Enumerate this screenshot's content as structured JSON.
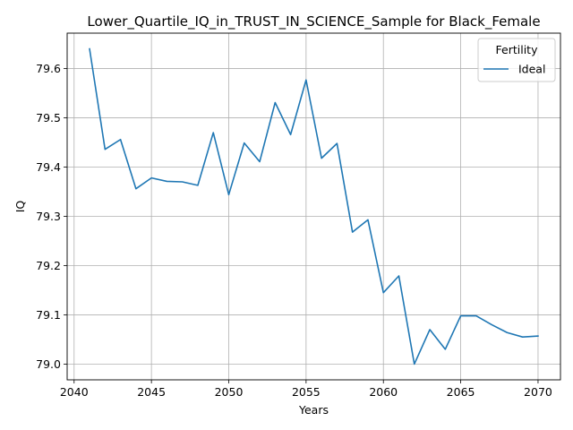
{
  "chart_data": {
    "type": "line",
    "title": "Lower_Quartile_IQ_in_TRUST_IN_SCIENCE_Sample for Black_Female",
    "xlabel": "Years",
    "ylabel": "IQ",
    "xlim": [
      2039.55,
      2071.45
    ],
    "ylim": [
      78.968,
      79.672
    ],
    "xticks": [
      2040,
      2045,
      2050,
      2055,
      2060,
      2065,
      2070
    ],
    "yticks": [
      79.0,
      79.1,
      79.2,
      79.3,
      79.4,
      79.5,
      79.6
    ],
    "ytick_labels": [
      "79.0",
      "79.1",
      "79.2",
      "79.3",
      "79.4",
      "79.5",
      "79.6"
    ],
    "grid": true,
    "legend": {
      "title": "Fertility",
      "placement": "top-right"
    },
    "series": [
      {
        "name": "Ideal",
        "color": "#1f77b4",
        "x": [
          2041,
          2042,
          2043,
          2044,
          2045,
          2046,
          2047,
          2048,
          2049,
          2050,
          2051,
          2052,
          2053,
          2054,
          2055,
          2056,
          2057,
          2058,
          2059,
          2060,
          2061,
          2062,
          2063,
          2064,
          2065,
          2066,
          2067,
          2068,
          2069,
          2070
        ],
        "values": [
          79.64,
          79.436,
          79.456,
          79.356,
          79.378,
          79.371,
          79.37,
          79.363,
          79.47,
          79.344,
          79.449,
          79.411,
          79.531,
          79.466,
          79.577,
          79.418,
          79.448,
          79.268,
          79.293,
          79.145,
          79.179,
          79.0,
          79.07,
          79.03,
          79.098,
          79.098,
          79.08,
          79.064,
          79.055,
          79.057
        ]
      }
    ]
  }
}
